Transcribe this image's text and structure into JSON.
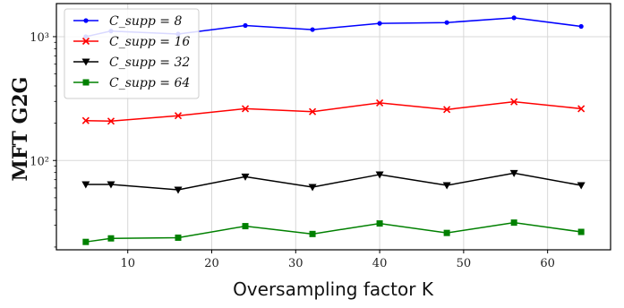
{
  "chart_data": {
    "type": "line",
    "title": "",
    "xlabel": "Oversampling factor K",
    "ylabel": "MFT G2G",
    "x": [
      5,
      8,
      16,
      24,
      32,
      40,
      48,
      56,
      64
    ],
    "xlim": [
      1.5,
      67.5
    ],
    "ylim": [
      19,
      1850
    ],
    "yscale": "log",
    "xticks": [
      10,
      20,
      30,
      40,
      50,
      60
    ],
    "yticks": [
      {
        "value": 100,
        "label": "10²"
      },
      {
        "value": 1000,
        "label": "10³"
      }
    ],
    "grid": true,
    "legend_position": "top-left",
    "series": [
      {
        "name": "C_supp = 8",
        "color": "#0000ff",
        "marker": "dot",
        "values": [
          1000,
          1110,
          1050,
          1230,
          1140,
          1280,
          1300,
          1420,
          1210
        ]
      },
      {
        "name": "C_supp = 16",
        "color": "#ff0000",
        "marker": "x",
        "values": [
          210,
          208,
          230,
          262,
          248,
          292,
          258,
          298,
          262
        ]
      },
      {
        "name": "C_supp = 32",
        "color": "#000000",
        "marker": "triangle-down",
        "values": [
          64,
          64,
          58,
          74,
          61,
          77,
          63,
          79,
          63
        ]
      },
      {
        "name": "C_supp = 64",
        "color": "#008000",
        "marker": "square",
        "values": [
          22,
          23.5,
          23.8,
          29.5,
          25.5,
          31,
          26,
          31.5,
          26.5
        ]
      }
    ]
  }
}
